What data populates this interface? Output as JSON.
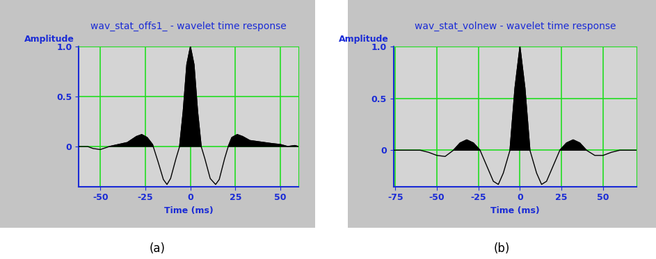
{
  "chart_data": [
    {
      "type": "line",
      "title": "wav_stat_offs1_ - wavelet time response",
      "x_label": "Time (ms)",
      "y_label": "Amplitude",
      "annotations": [
        "(a)"
      ],
      "x": [
        -62,
        -57,
        -54,
        -50,
        -45,
        -40,
        -35,
        -30,
        -27,
        -24,
        -21,
        -18,
        -15,
        -13,
        -11,
        -8,
        -6,
        -4,
        -2,
        0,
        2,
        4,
        6,
        8,
        11,
        14,
        16,
        19,
        21,
        23,
        26,
        29,
        33,
        37,
        41,
        45,
        50,
        54,
        58,
        60
      ],
      "values": [
        0.0,
        0.0,
        -0.02,
        -0.03,
        0.0,
        0.02,
        0.04,
        0.1,
        0.12,
        0.09,
        0.02,
        -0.15,
        -0.33,
        -0.38,
        -0.32,
        -0.12,
        0.0,
        0.35,
        0.82,
        1.0,
        0.82,
        0.35,
        0.0,
        -0.12,
        -0.32,
        -0.38,
        -0.33,
        -0.12,
        0.0,
        0.09,
        0.12,
        0.1,
        0.06,
        0.05,
        0.04,
        0.03,
        0.02,
        0.0,
        0.01,
        0.0
      ],
      "color": "#000000",
      "xlim": [
        -62,
        60
      ],
      "xticks": [
        -50,
        -25,
        0,
        25,
        50
      ],
      "ylim": [
        -0.4,
        1.0
      ],
      "yticks": [
        0,
        0.5,
        {
          "value": 1,
          "label": "1.0"
        }
      ],
      "grid": true
    },
    {
      "type": "line",
      "title": "wav_stat_volnew - wavelet time response",
      "x_label": "Time (ms)",
      "y_label": "Amplitude",
      "annotations": [
        "(b)"
      ],
      "x": [
        -76,
        -70,
        -60,
        -55,
        -50,
        -45,
        -40,
        -36,
        -32,
        -28,
        -24,
        -20,
        -16,
        -13,
        -10,
        -6,
        -3,
        0,
        3,
        6,
        10,
        13,
        16,
        20,
        24,
        28,
        32,
        36,
        40,
        45,
        50,
        55,
        60,
        70
      ],
      "values": [
        0.0,
        0.0,
        0.0,
        -0.02,
        -0.05,
        -0.06,
        0.0,
        0.07,
        0.1,
        0.07,
        0.0,
        -0.15,
        -0.3,
        -0.33,
        -0.22,
        0.0,
        0.6,
        1.0,
        0.6,
        0.0,
        -0.22,
        -0.33,
        -0.3,
        -0.15,
        0.0,
        0.07,
        0.1,
        0.07,
        0.0,
        -0.05,
        -0.05,
        -0.02,
        0.0,
        0.0
      ],
      "color": "#000000",
      "xlim": [
        -76,
        70
      ],
      "xticks": [
        -75,
        -50,
        -25,
        0,
        25,
        50
      ],
      "ylim": [
        -0.35,
        1.0
      ],
      "yticks": [
        0,
        0.5,
        {
          "value": 1,
          "label": "1.0"
        }
      ],
      "grid": true
    }
  ]
}
